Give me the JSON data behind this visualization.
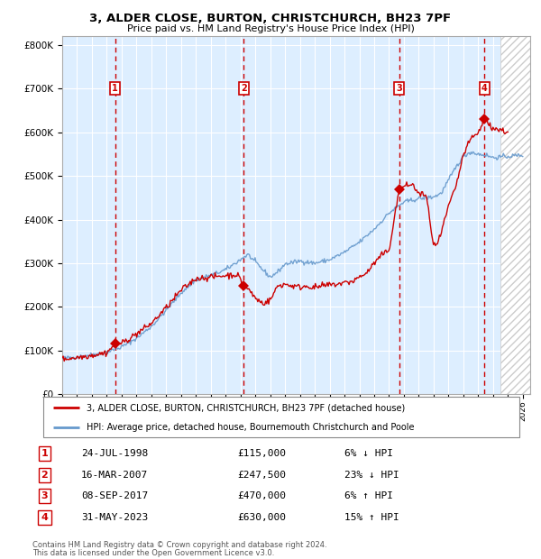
{
  "title": "3, ALDER CLOSE, BURTON, CHRISTCHURCH, BH23 7PF",
  "subtitle": "Price paid vs. HM Land Registry's House Price Index (HPI)",
  "transactions": [
    {
      "num": 1,
      "date": "24-JUL-1998",
      "year": 1998.56,
      "price": 115000,
      "pct": "6%",
      "dir": "↓"
    },
    {
      "num": 2,
      "date": "16-MAR-2007",
      "year": 2007.21,
      "price": 247500,
      "pct": "23%",
      "dir": "↓"
    },
    {
      "num": 3,
      "date": "08-SEP-2017",
      "year": 2017.69,
      "price": 470000,
      "pct": "6%",
      "dir": "↑"
    },
    {
      "num": 4,
      "date": "31-MAY-2023",
      "year": 2023.42,
      "price": 630000,
      "pct": "15%",
      "dir": "↑"
    }
  ],
  "legend_property": "3, ALDER CLOSE, BURTON, CHRISTCHURCH, BH23 7PF (detached house)",
  "legend_hpi": "HPI: Average price, detached house, Bournemouth Christchurch and Poole",
  "footer1": "Contains HM Land Registry data © Crown copyright and database right 2024.",
  "footer2": "This data is licensed under the Open Government Licence v3.0.",
  "property_color": "#cc0000",
  "hpi_color": "#6699cc",
  "background_color": "#ddeeff",
  "ylim": [
    0,
    820000
  ],
  "xlim_start": 1995.0,
  "xlim_end": 2026.5,
  "hatch_start": 2024.5,
  "yticks": [
    0,
    100000,
    200000,
    300000,
    400000,
    500000,
    600000,
    700000,
    800000
  ],
  "ytick_labels": [
    "£0",
    "£100K",
    "£200K",
    "£300K",
    "£400K",
    "£500K",
    "£600K",
    "£700K",
    "£800K"
  ],
  "hpi_anchors": [
    [
      1995.0,
      82000
    ],
    [
      1996.0,
      85000
    ],
    [
      1997.0,
      90000
    ],
    [
      1998.0,
      96000
    ],
    [
      1999.0,
      108000
    ],
    [
      2000.0,
      128000
    ],
    [
      2001.0,
      155000
    ],
    [
      2002.0,
      192000
    ],
    [
      2003.0,
      232000
    ],
    [
      2004.0,
      262000
    ],
    [
      2005.0,
      272000
    ],
    [
      2006.0,
      285000
    ],
    [
      2007.5,
      320000
    ],
    [
      2008.5,
      285000
    ],
    [
      2009.0,
      268000
    ],
    [
      2009.5,
      280000
    ],
    [
      2010.0,
      298000
    ],
    [
      2011.0,
      305000
    ],
    [
      2012.0,
      300000
    ],
    [
      2013.0,
      308000
    ],
    [
      2014.0,
      325000
    ],
    [
      2015.0,
      348000
    ],
    [
      2016.0,
      378000
    ],
    [
      2017.0,
      415000
    ],
    [
      2018.0,
      440000
    ],
    [
      2019.0,
      448000
    ],
    [
      2020.0,
      452000
    ],
    [
      2020.5,
      460000
    ],
    [
      2021.0,
      490000
    ],
    [
      2021.5,
      520000
    ],
    [
      2022.0,
      545000
    ],
    [
      2022.5,
      555000
    ],
    [
      2023.0,
      550000
    ],
    [
      2023.5,
      548000
    ],
    [
      2024.0,
      542000
    ],
    [
      2025.0,
      545000
    ],
    [
      2026.0,
      548000
    ]
  ],
  "prop_anchors": [
    [
      1995.0,
      80000
    ],
    [
      1996.0,
      84000
    ],
    [
      1997.0,
      89000
    ],
    [
      1998.0,
      95000
    ],
    [
      1998.56,
      115000
    ],
    [
      1999.0,
      116000
    ],
    [
      2000.0,
      138000
    ],
    [
      2001.0,
      162000
    ],
    [
      2002.0,
      198000
    ],
    [
      2003.0,
      238000
    ],
    [
      2004.0,
      265000
    ],
    [
      2005.0,
      268000
    ],
    [
      2006.0,
      272000
    ],
    [
      2006.8,
      274000
    ],
    [
      2007.21,
      247500
    ],
    [
      2007.5,
      242000
    ],
    [
      2008.0,
      220000
    ],
    [
      2008.5,
      208000
    ],
    [
      2009.0,
      215000
    ],
    [
      2009.5,
      248000
    ],
    [
      2010.0,
      252000
    ],
    [
      2010.5,
      248000
    ],
    [
      2011.0,
      245000
    ],
    [
      2011.5,
      248000
    ],
    [
      2012.0,
      244000
    ],
    [
      2012.5,
      248000
    ],
    [
      2013.0,
      250000
    ],
    [
      2013.5,
      252000
    ],
    [
      2014.0,
      255000
    ],
    [
      2014.5,
      258000
    ],
    [
      2015.0,
      268000
    ],
    [
      2015.5,
      278000
    ],
    [
      2016.0,
      300000
    ],
    [
      2016.5,
      318000
    ],
    [
      2017.0,
      330000
    ],
    [
      2017.69,
      470000
    ],
    [
      2018.0,
      475000
    ],
    [
      2018.5,
      482000
    ],
    [
      2019.0,
      460000
    ],
    [
      2019.5,
      455000
    ],
    [
      2020.0,
      340000
    ],
    [
      2020.3,
      345000
    ],
    [
      2020.6,
      380000
    ],
    [
      2021.0,
      430000
    ],
    [
      2021.5,
      475000
    ],
    [
      2022.0,
      548000
    ],
    [
      2022.5,
      585000
    ],
    [
      2023.0,
      598000
    ],
    [
      2023.42,
      630000
    ],
    [
      2023.7,
      618000
    ],
    [
      2024.0,
      610000
    ],
    [
      2024.5,
      605000
    ],
    [
      2025.0,
      600000
    ]
  ]
}
